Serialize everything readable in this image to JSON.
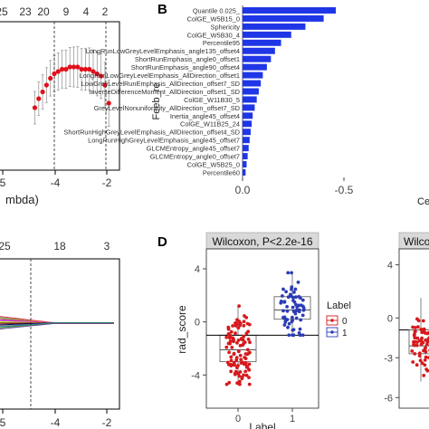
{
  "chart_data": [
    {
      "panel": "A (upper, cropped)",
      "type": "line",
      "title": "",
      "xlabel": "mbda)",
      "ylabel": "",
      "top_ticks": [
        "25",
        "23",
        "20",
        "9",
        "4",
        "2"
      ],
      "x_ticks": [
        "5",
        "-4",
        "-2"
      ],
      "x": [
        -5.6,
        -5.4,
        -5.2,
        -5.0,
        -4.8,
        -4.6,
        -4.4,
        -4.2,
        -4.0,
        -3.8,
        -3.6,
        -3.4,
        -3.2,
        -3.0,
        -2.8,
        -2.6,
        -2.4,
        -2.2,
        -2.0,
        -1.8
      ],
      "y": [
        0.62,
        0.66,
        0.69,
        0.72,
        0.75,
        0.77,
        0.78,
        0.79,
        0.79,
        0.8,
        0.8,
        0.8,
        0.79,
        0.79,
        0.79,
        0.78,
        0.77,
        0.76,
        0.72,
        0.64
      ],
      "vlines": [
        -4.6,
        -1.95
      ],
      "grid": false
    },
    {
      "panel": "A (lower, cropped)",
      "type": "line",
      "xlabel": "",
      "ylabel": "",
      "top_ticks": [
        "25",
        "18",
        "3"
      ],
      "x_ticks": [
        "5",
        "-4",
        "-2"
      ],
      "vlines": [
        -4.6
      ],
      "grid": false
    },
    {
      "panel": "B",
      "type": "bar",
      "orientation": "horizontal",
      "ylabel": "Feeb_re",
      "xlabel": "Ce",
      "x_ticks": [
        "-0.5",
        "0.0"
      ],
      "categories": [
        "Quantile 0.025_",
        "ColGE_W5B15_0",
        "Sphericity",
        "ColGE_W5B30_4",
        "Percentile95",
        "LongRunLowGreyLevelEmphasis_angle135_offset4",
        "ShortRunEmphasis_angle0_offset1",
        "ShortRunEmphasis_angle90_offset4",
        "LongRunLowGreyLevelEmphasis_AllDirection_offset1",
        "LowGreyLevelRunEmphasis_AllDirection_offset7_SD",
        "InverseDifferenceMoment_AllDirection_offset1_SD",
        "ColGE_W11B30_5",
        "GreyLevelNonuniformity_AllDirection_offset7_SD",
        "Inertia_angle45_offset4",
        "ColGE_W11B25_24",
        "ShortRunHighGreyLevelEmphasis_AllDirection_offset4_SD",
        "LongRunHighGreyLevelEmphasis_angle45_offset7",
        "GLCMEntropy_angle45_offset7",
        "GLCMEntropy_angle0_offset7",
        "ColGE_W5B25_0",
        "Percentile60"
      ],
      "values": [
        -0.46,
        -0.4,
        -0.31,
        -0.24,
        -0.19,
        -0.16,
        -0.14,
        -0.12,
        -0.1,
        -0.09,
        -0.08,
        -0.07,
        -0.06,
        -0.05,
        -0.045,
        -0.04,
        -0.035,
        -0.03,
        -0.025,
        -0.02,
        -0.015
      ],
      "bar_color": "#1f36e6",
      "xlim": [
        -0.75,
        0.05
      ]
    },
    {
      "panel": "D",
      "type": "scatter",
      "title": "Wilcoxon, P<2.2e-16",
      "xlabel": "Label",
      "ylabel": "rad_score",
      "categories": [
        "0",
        "1"
      ],
      "y_ticks": [
        "4",
        "0",
        "-4"
      ],
      "ylim": [
        -6.5,
        5.5
      ],
      "hline": -1.0,
      "legend_title": "Label",
      "legend": [
        {
          "name": "0",
          "color": "#d7191c"
        },
        {
          "name": "1",
          "color": "#2c3cb5"
        }
      ],
      "box": [
        {
          "category": "0",
          "min": -4.6,
          "q1": -3.0,
          "median": -2.1,
          "q3": -1.0,
          "max": 1.1
        },
        {
          "category": "1",
          "min": -0.9,
          "q1": 0.2,
          "median": 0.9,
          "q3": 1.9,
          "max": 3.6
        }
      ],
      "point_counts": [
        110,
        65
      ],
      "color_0": "#d7191c",
      "color_1": "#2c3cb5"
    },
    {
      "panel": "D right (cropped)",
      "type": "scatter",
      "title": "Wilcox",
      "y_ticks": [
        "4",
        "0",
        "-3",
        "-6"
      ],
      "ylim": [
        -6.8,
        5.2
      ],
      "hline": -0.9
    }
  ],
  "labels": {
    "b": "B",
    "d": "D"
  }
}
